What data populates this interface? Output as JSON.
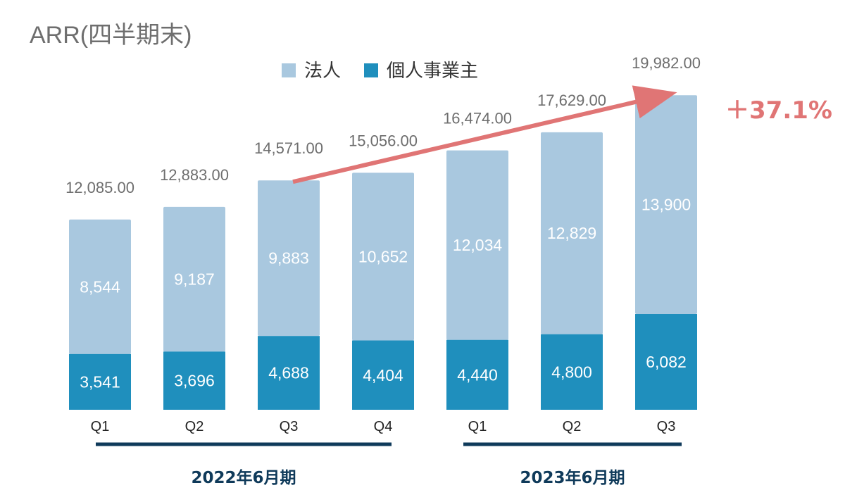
{
  "title": "ARR(四半期末)",
  "chart_data": {
    "type": "bar",
    "stacked": true,
    "categories": [
      "Q1",
      "Q2",
      "Q3",
      "Q4",
      "Q1",
      "Q2",
      "Q3"
    ],
    "series": [
      {
        "name": "個人事業主",
        "color": "#1f8fbd",
        "values": [
          3541,
          3696,
          4688,
          4404,
          4440,
          4800,
          6082
        ],
        "labels": [
          "3,541",
          "3,696",
          "4,688",
          "4,404",
          "4,440",
          "4,800",
          "6,082"
        ]
      },
      {
        "name": "法人",
        "color": "#a9c8df",
        "values": [
          8544,
          9187,
          9883,
          10652,
          12034,
          12829,
          13900
        ],
        "labels": [
          "8,544",
          "9,187",
          "9,883",
          "10,652",
          "12,034",
          "12,829",
          "13,900"
        ]
      }
    ],
    "totals": [
      12085,
      12883,
      14571,
      15056,
      16474,
      17629,
      19982
    ],
    "total_labels": [
      "12,085.00",
      "12,883.00",
      "14,571.00",
      "15,056.00",
      "16,474.00",
      "17,629.00",
      "19,982.00"
    ],
    "legend_order": [
      "法人",
      "個人事業主"
    ],
    "legend_position": "top-center",
    "groups": [
      {
        "label": "2022年6月期",
        "from": 0,
        "to": 3
      },
      {
        "label": "2023年6月期",
        "from": 4,
        "to": 6
      }
    ],
    "annotation": {
      "text": "＋37.1%",
      "from": 2,
      "to": 6,
      "color": "#e07575"
    },
    "grid": false
  }
}
